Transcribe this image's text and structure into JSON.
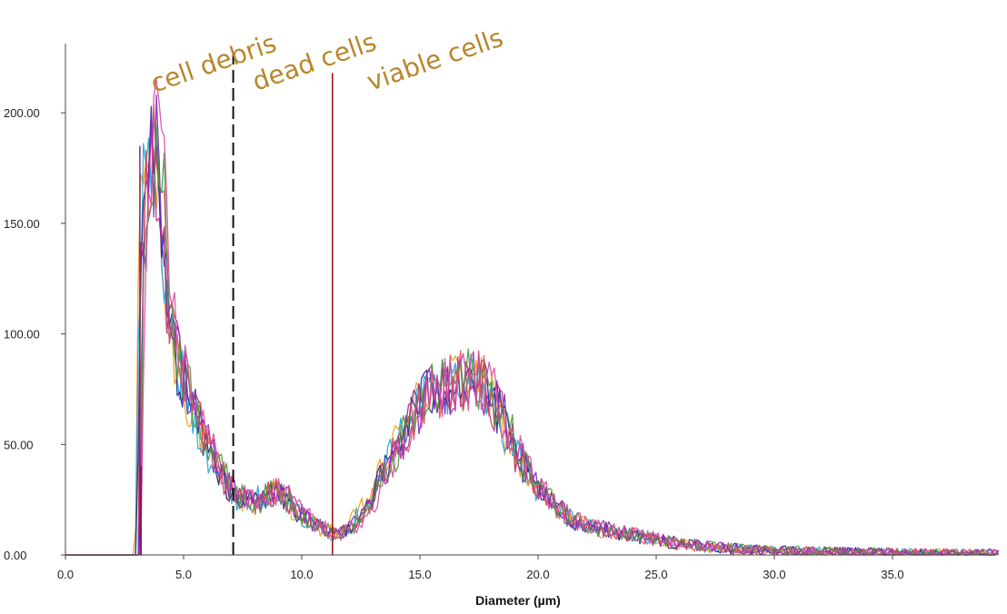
{
  "chart_data": {
    "type": "line",
    "title": "",
    "xlabel": "Diameter (µm)",
    "ylabel": "",
    "xlim": [
      0,
      39.5
    ],
    "ylim": [
      0,
      230
    ],
    "x_ticks": [
      0,
      5,
      10,
      15,
      20,
      25,
      30,
      35
    ],
    "x_tick_labels": [
      "0.0",
      "5.0",
      "10.0",
      "15.0",
      "20.0",
      "25.0",
      "30.0",
      "35.0"
    ],
    "y_ticks": [
      0,
      50,
      100,
      150,
      200
    ],
    "y_tick_labels": [
      "0.00",
      "50.00",
      "100.00",
      "150.00",
      "200.00"
    ],
    "grid": false,
    "legend": "none",
    "series_colors": [
      "#e8a020",
      "#20a8d8",
      "#1a2a8a",
      "#c02a7a",
      "#e05050",
      "#7a2ac0",
      "#4a9a3a",
      "#d84aa0"
    ],
    "profile_points": [
      [
        0,
        0
      ],
      [
        3.1,
        0
      ],
      [
        3.2,
        120
      ],
      [
        3.4,
        165
      ],
      [
        3.7,
        185
      ],
      [
        4.0,
        170
      ],
      [
        4.3,
        120
      ],
      [
        4.6,
        95
      ],
      [
        5.0,
        80
      ],
      [
        5.5,
        65
      ],
      [
        6.0,
        50
      ],
      [
        6.5,
        38
      ],
      [
        7.0,
        30
      ],
      [
        7.5,
        25
      ],
      [
        8.0,
        24
      ],
      [
        8.5,
        27
      ],
      [
        9.0,
        29
      ],
      [
        9.5,
        24
      ],
      [
        10.0,
        18
      ],
      [
        10.5,
        14
      ],
      [
        11.0,
        11
      ],
      [
        11.5,
        10
      ],
      [
        12.0,
        12
      ],
      [
        12.5,
        18
      ],
      [
        13.0,
        26
      ],
      [
        13.5,
        37
      ],
      [
        14.0,
        48
      ],
      [
        14.5,
        60
      ],
      [
        15.0,
        68
      ],
      [
        15.5,
        74
      ],
      [
        16.0,
        77
      ],
      [
        16.5,
        79
      ],
      [
        17.0,
        80
      ],
      [
        17.5,
        79
      ],
      [
        18.0,
        72
      ],
      [
        18.5,
        62
      ],
      [
        19.0,
        48
      ],
      [
        19.5,
        38
      ],
      [
        20.0,
        30
      ],
      [
        20.5,
        24
      ],
      [
        21.0,
        20
      ],
      [
        21.5,
        16
      ],
      [
        22.0,
        14
      ],
      [
        23.0,
        11
      ],
      [
        24.0,
        9
      ],
      [
        25.0,
        7
      ],
      [
        26.0,
        5
      ],
      [
        27.0,
        4
      ],
      [
        28.0,
        3
      ],
      [
        30.0,
        2
      ],
      [
        32.0,
        1.5
      ],
      [
        35.0,
        1
      ],
      [
        37.0,
        0.8
      ],
      [
        39.5,
        0.5
      ]
    ],
    "boundaries": [
      {
        "x": 3.2,
        "color": "#7a2060",
        "style": "solid",
        "ymax": 40
      },
      {
        "x": 7.1,
        "color": "#111111",
        "style": "dashed",
        "ymax": 230
      },
      {
        "x": 11.3,
        "color": "#9a1a1a",
        "style": "solid",
        "ymax": 218
      }
    ],
    "regions": [
      {
        "label": "cell debris",
        "x": 3.5
      },
      {
        "label": "dead cells",
        "x": 7.8
      },
      {
        "label": "viable cells",
        "x": 12.6
      }
    ]
  }
}
